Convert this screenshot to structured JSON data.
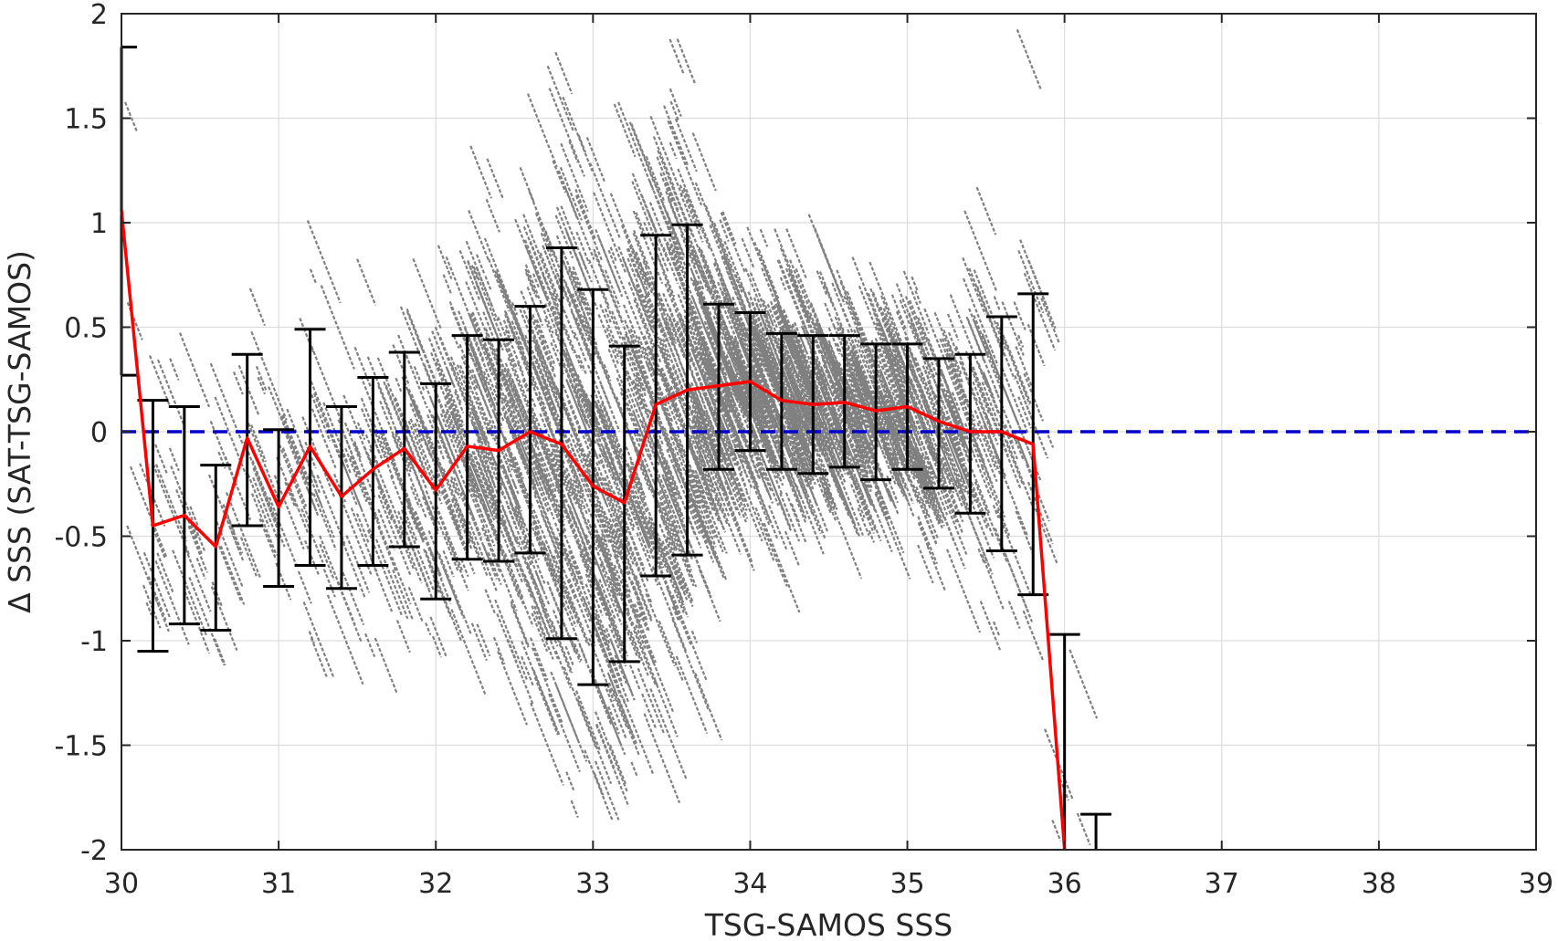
{
  "chart_data": {
    "type": "scatter",
    "xlabel": "TSG-SAMOS SSS",
    "ylabel": "Δ SSS (SAT-TSG-SAMOS)",
    "xlim": [
      30,
      39
    ],
    "ylim": [
      -2,
      2
    ],
    "xticks": [
      30,
      31,
      32,
      33,
      34,
      35,
      36,
      37,
      38,
      39
    ],
    "yticks": [
      -2,
      -1.5,
      -1,
      -0.5,
      0,
      0.5,
      1,
      1.5,
      2
    ],
    "xtick_labels": [
      "30",
      "31",
      "32",
      "33",
      "34",
      "35",
      "36",
      "37",
      "38",
      "39"
    ],
    "ytick_labels": [
      "-2",
      "-1.5",
      "-1",
      "-0.5",
      "0",
      "0.5",
      "1",
      "1.5",
      "2"
    ],
    "grid": true,
    "legend": "none",
    "colors": {
      "scatter": "#808080",
      "mean_line": "#ff0000",
      "error_bars": "#000000",
      "zero_line": "#0000cc"
    },
    "reference_line": {
      "y": 0,
      "style": "dashed"
    },
    "binned_mean": {
      "x": [
        30.0,
        30.2,
        30.4,
        30.6,
        30.8,
        31.0,
        31.2,
        31.4,
        31.6,
        31.8,
        32.0,
        32.2,
        32.4,
        32.6,
        32.8,
        33.0,
        33.2,
        33.4,
        33.6,
        33.8,
        34.0,
        34.2,
        34.4,
        34.6,
        34.8,
        35.0,
        35.2,
        35.4,
        35.6,
        35.8,
        36.0,
        36.2
      ],
      "mean": [
        1.06,
        -0.45,
        -0.4,
        -0.55,
        -0.03,
        -0.36,
        -0.07,
        -0.31,
        -0.18,
        -0.08,
        -0.28,
        -0.07,
        -0.09,
        0.0,
        -0.06,
        -0.26,
        -0.34,
        0.13,
        0.2,
        0.22,
        0.24,
        0.15,
        0.13,
        0.14,
        0.1,
        0.12,
        0.05,
        0.0,
        0.0,
        -0.06,
        -2.0,
        null
      ],
      "upper": [
        1.84,
        0.15,
        0.12,
        -0.16,
        0.37,
        0.01,
        0.49,
        0.12,
        0.26,
        0.38,
        0.23,
        0.46,
        0.44,
        0.6,
        0.88,
        0.68,
        0.41,
        0.94,
        0.99,
        0.61,
        0.57,
        0.47,
        0.46,
        0.46,
        0.42,
        0.42,
        0.35,
        0.37,
        0.55,
        0.66,
        -0.97,
        -1.83
      ],
      "lower": [
        0.27,
        -1.05,
        -0.92,
        -0.95,
        -0.45,
        -0.74,
        -0.64,
        -0.75,
        -0.64,
        -0.55,
        -0.8,
        -0.61,
        -0.62,
        -0.58,
        -0.99,
        -1.21,
        -1.1,
        -0.69,
        -0.59,
        -0.18,
        -0.09,
        -0.18,
        -0.2,
        -0.17,
        -0.23,
        -0.18,
        -0.27,
        -0.39,
        -0.57,
        -0.78,
        -2.0,
        -2.0
      ]
    },
    "scatter_description": "dense diagonal streaks of gray points, slope about -1, concentrated between x=30 and x=36.4"
  }
}
